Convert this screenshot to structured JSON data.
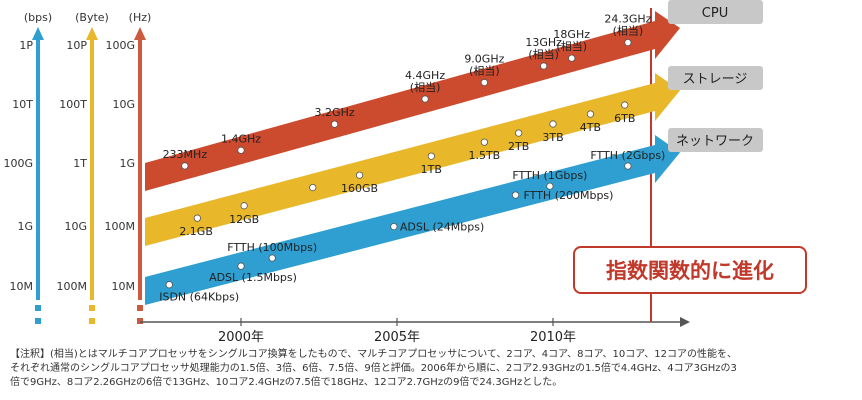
{
  "chart_data": {
    "type": "line",
    "axes": [
      {
        "unit": "(bps)",
        "color": "#2e9fd0",
        "ticks": [
          "1P",
          "10T",
          "100G",
          "1G",
          "10M"
        ]
      },
      {
        "unit": "(Byte)",
        "color": "#e8b72a",
        "ticks": [
          "10P",
          "100T",
          "1T",
          "10G",
          "100M"
        ]
      },
      {
        "unit": "(Hz)",
        "color": "#cc5a3f",
        "ticks": [
          "100G",
          "10G",
          "1G",
          "100M",
          "10M"
        ]
      }
    ],
    "x_ticks": [
      "2000年",
      "2005年",
      "2010年"
    ],
    "highlight": "指数関数的に進化",
    "series": [
      {
        "name": "CPU",
        "color": "#cc4a2e",
        "points": [
          {
            "year": 1998.2,
            "label": "233MHz"
          },
          {
            "year": 2000.0,
            "label": "1.4GHz"
          },
          {
            "year": 2003.0,
            "label": "3.2GHz"
          },
          {
            "year": 2005.9,
            "label": "4.4GHz\n(相当)"
          },
          {
            "year": 2007.8,
            "label": "9.0GHz\n(相当)"
          },
          {
            "year": 2009.7,
            "label": "13GHz\n(相当)"
          },
          {
            "year": 2010.6,
            "label": "18GHz\n(相当)"
          },
          {
            "year": 2012.4,
            "label": "24.3GHz\n(相当)"
          }
        ]
      },
      {
        "name": "ストレージ",
        "color": "#e8b72a",
        "points": [
          {
            "year": 1998.6,
            "label": "2.1GB"
          },
          {
            "year": 2000.1,
            "label": "12GB"
          },
          {
            "year": 2002.3,
            "label": ""
          },
          {
            "year": 2003.8,
            "label": "160GB"
          },
          {
            "year": 2006.1,
            "label": "1TB"
          },
          {
            "year": 2007.8,
            "label": "1.5TB"
          },
          {
            "year": 2008.9,
            "label": "2TB"
          },
          {
            "year": 2010.0,
            "label": "3TB"
          },
          {
            "year": 2011.2,
            "label": "4TB"
          },
          {
            "year": 2012.3,
            "label": "6TB"
          }
        ]
      },
      {
        "name": "ネットワーク",
        "color": "#2e9fd0",
        "points": [
          {
            "year": 1997.7,
            "label": "ISDN (64Kbps)"
          },
          {
            "year": 2000.0,
            "label": "ADSL (1.5Mbps)"
          },
          {
            "year": 2001.0,
            "label": "FTTH (100Mbps)"
          },
          {
            "year": 2004.9,
            "label": "ADSL (24Mbps)"
          },
          {
            "year": 2008.8,
            "label": "FTTH (200Mbps)"
          },
          {
            "year": 2009.9,
            "label": "FTTH (1Gbps)"
          },
          {
            "year": 2012.4,
            "label": "FTTH (2Gbps)"
          }
        ]
      }
    ]
  },
  "note": {
    "line1": "【注釈】(相当)とはマルチコアプロセッサをシングルコア換算をしたもので、マルチコアプロセッサについて、2コア、4コア、8コア、10コア、12コアの性能を、",
    "line2": "それぞれ通常のシングルコアプロセッサ処理能力の1.5倍、3倍、6倍、7.5倍、9倍と評価。2006年から順に、2コア2.93GHzの1.5倍で4.4GHz、4コア3GHzの3",
    "line3": "倍で9GHz、8コア2.26GHzの6倍で13GHz、10コア2.4GHzの7.5倍で18GHz、12コア2.7GHzの9倍で24.3GHzとした。"
  }
}
